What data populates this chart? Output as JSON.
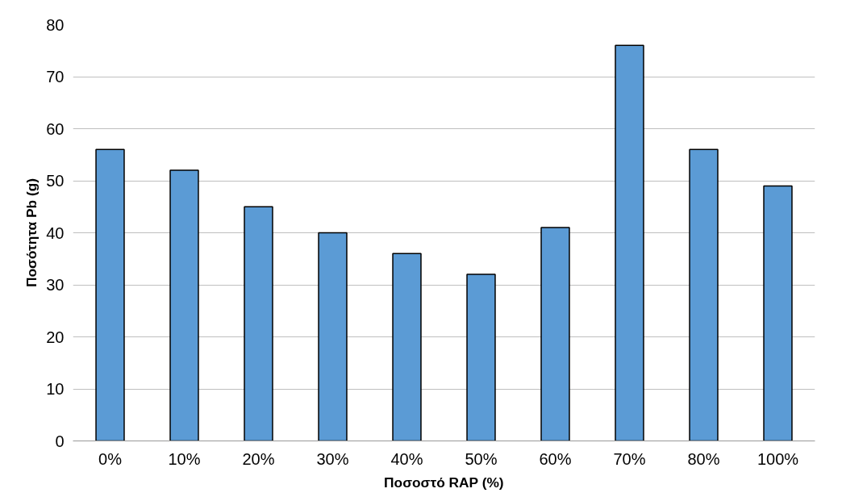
{
  "chart_data": {
    "type": "bar",
    "xlabel": "Ποσοστό RAP (%)",
    "ylabel": "Ποσότητα Pb (g)",
    "categories": [
      "0%",
      "10%",
      "20%",
      "30%",
      "40%",
      "50%",
      "60%",
      "70%",
      "80%",
      "100%"
    ],
    "values": [
      56,
      52,
      45,
      40,
      36,
      32,
      41,
      76,
      56,
      49
    ],
    "color": "#5b9bd5",
    "ylim": [
      0,
      80
    ],
    "yticks": [
      0,
      10,
      20,
      30,
      40,
      50,
      60,
      70,
      80
    ],
    "grid": "y"
  }
}
